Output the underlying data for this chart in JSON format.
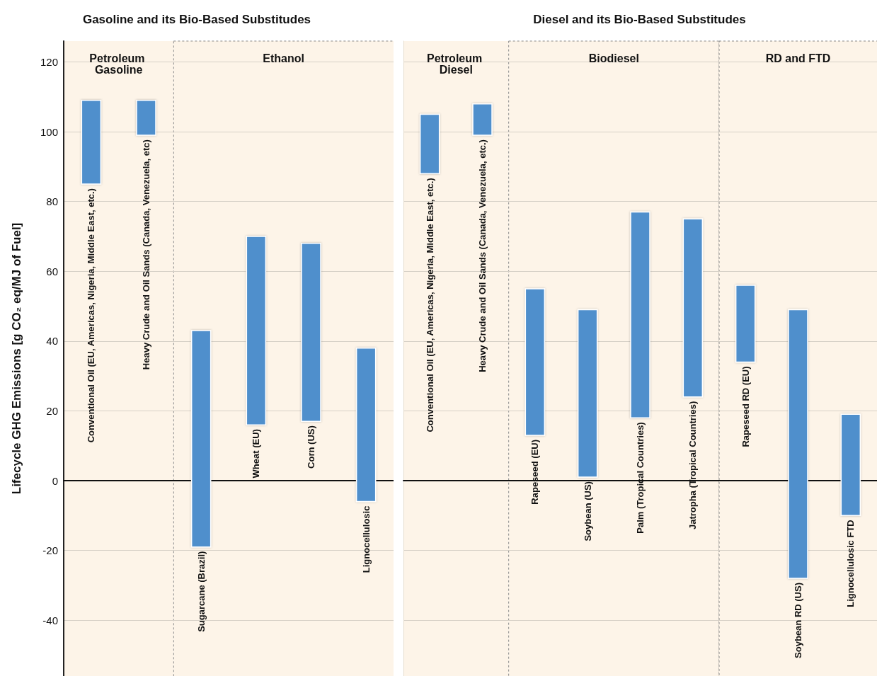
{
  "chart_data": [
    {
      "type": "bar",
      "title": "Gasoline and its Bio-Based Substitudes",
      "ylabel": "Lifecycle GHG Emissions [g CO₂ eq/MJ of Fuel]",
      "categories": [
        "Conventional Oil (EU, Americas, Nigeria, Middle East, etc.)",
        "Heavy Crude and Oil Sands (Canada, Venezuela, etc)",
        "Sugarcane (Brazil)",
        "Wheat (EU)",
        "Corn (US)",
        "Lignocellulosic"
      ],
      "base": [
        85,
        99,
        -19,
        16,
        17,
        -6
      ],
      "values": [
        24,
        10,
        62,
        54,
        51,
        44
      ],
      "color": "#4f8fcc",
      "ylim": [
        -56,
        126
      ],
      "yticks": [
        -40,
        -20,
        0,
        20,
        40,
        60,
        80,
        100,
        120
      ],
      "grid": "y",
      "bands": [
        {
          "axis": "x",
          "from": "Conventional Oil (EU, Americas, Nigeria, Middle East, etc.)",
          "to": "Heavy Crude and Oil Sands (Canada, Venezuela, etc)",
          "label": "Petroleum Gasoline",
          "color": "#fdf4e8"
        },
        {
          "axis": "x",
          "from": "Sugarcane (Brazil)",
          "to": "Lignocellulosic",
          "label": "Ethanol",
          "color": "#fdf4e8"
        }
      ]
    },
    {
      "type": "bar",
      "title": "Diesel and its Bio-Based Substitudes",
      "categories": [
        "Conventional Oil (EU, Americas, Nigeria, Middle East, etc.)",
        "Heavy Crude and Oil Sands (Canada, Venezuela, etc.)",
        "Rapeseed (EU)",
        "Soybean (US)",
        "Palm (Tropical Countries)",
        "Jatropha (Tropical Countries)",
        "Rapeseed RD (EU)",
        "Soybean RD (US)",
        "Lignocellulosic FTD"
      ],
      "base": [
        88,
        99,
        13,
        1,
        18,
        24,
        34,
        -28,
        -10
      ],
      "values": [
        17,
        9,
        42,
        48,
        59,
        51,
        22,
        77,
        29
      ],
      "color": "#4f8fcc",
      "ylim": [
        -56,
        126
      ],
      "yticks": [
        -40,
        -20,
        0,
        20,
        40,
        60,
        80,
        100,
        120
      ],
      "grid": "y",
      "tick_labels": false,
      "bands": [
        {
          "axis": "x",
          "from": "Conventional Oil (EU, Americas, Nigeria, Middle East, etc.)",
          "to": "Heavy Crude and Oil Sands (Canada, Venezuela, etc.)",
          "label": "Petroleum Diesel",
          "color": "#fdf4e8"
        },
        {
          "axis": "x",
          "from": "Rapeseed (EU)",
          "to": "Jatropha (Tropical Countries)",
          "label": "Biodiesel",
          "color": "#fdf4e8"
        },
        {
          "axis": "x",
          "from": "Rapeseed RD (EU)",
          "to": "Lignocellulosic FTD",
          "label": "RD and FTD",
          "color": "#fdf4e8"
        }
      ]
    }
  ]
}
